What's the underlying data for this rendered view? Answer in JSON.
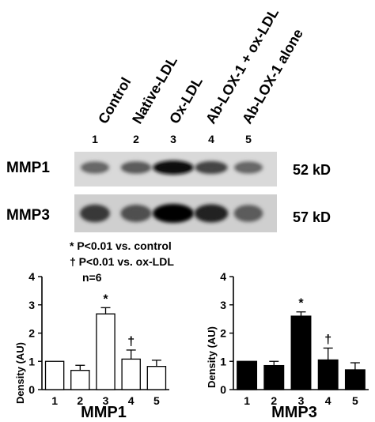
{
  "lanes": {
    "labels": [
      "Control",
      "Native-LDL",
      "Ox-LDL",
      "Ab-LOX-1 + ox-LDL",
      "Ab-LOX-1 alone"
    ],
    "numbers": [
      "1",
      "2",
      "3",
      "4",
      "5"
    ]
  },
  "blots": [
    {
      "name": "MMP1",
      "kd": "52 kD",
      "band_intensity": [
        0.55,
        0.6,
        0.95,
        0.7,
        0.55
      ]
    },
    {
      "name": "MMP3",
      "kd": "57 kD",
      "band_intensity": [
        0.75,
        0.65,
        1.0,
        0.85,
        0.6
      ]
    }
  ],
  "stats": {
    "line1": "* P<0.01 vs. control",
    "line2": "† P<0.01 vs. ox-LDL",
    "line3": "n=6"
  },
  "colors": {
    "mmp1_bars": "#ffffff",
    "mmp3_bars": "#000000",
    "ink": "#000000"
  },
  "chart_data": [
    {
      "type": "bar",
      "title": "",
      "xlabel": "MMP1",
      "ylabel": "Density (AU)",
      "categories": [
        "1",
        "2",
        "3",
        "4",
        "5"
      ],
      "values": [
        1.0,
        0.68,
        2.68,
        1.08,
        0.82
      ],
      "errors": [
        0.0,
        0.18,
        0.22,
        0.32,
        0.22
      ],
      "markers": [
        "",
        "",
        "*",
        "†",
        ""
      ],
      "ylim": [
        0,
        4
      ],
      "yticks": [
        "0",
        "1",
        "2",
        "3",
        "4"
      ],
      "bar_color": "#ffffff",
      "grid": false
    },
    {
      "type": "bar",
      "title": "",
      "xlabel": "MMP3",
      "ylabel": "Density (AU)",
      "categories": [
        "1",
        "2",
        "3",
        "4",
        "5"
      ],
      "values": [
        1.0,
        0.85,
        2.6,
        1.05,
        0.7
      ],
      "errors": [
        0.0,
        0.15,
        0.15,
        0.42,
        0.25
      ],
      "markers": [
        "",
        "",
        "*",
        "†",
        ""
      ],
      "ylim": [
        0,
        4
      ],
      "yticks": [
        "0",
        "1",
        "2",
        "3",
        "4"
      ],
      "bar_color": "#000000",
      "grid": false
    }
  ]
}
